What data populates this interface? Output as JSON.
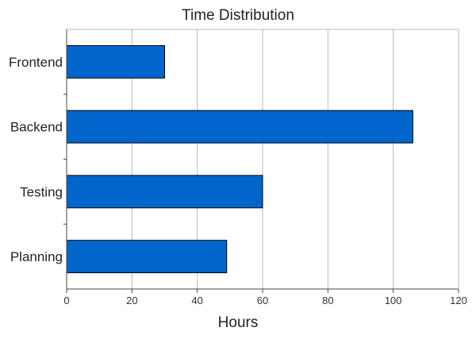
{
  "chart_data": {
    "type": "bar",
    "orientation": "horizontal",
    "title": "Time Distribution",
    "xlabel": "Hours",
    "ylabel": "",
    "categories": [
      "Frontend",
      "Backend",
      "Testing",
      "Planning"
    ],
    "values": [
      30,
      106,
      60,
      49
    ],
    "xlim": [
      0,
      120
    ],
    "xticks": [
      "0",
      "20",
      "40",
      "60",
      "80",
      "100",
      "120"
    ],
    "grid": "vertical",
    "legend": "none",
    "bar_color": "#0066cc",
    "bar_edge_color": "#000000"
  }
}
